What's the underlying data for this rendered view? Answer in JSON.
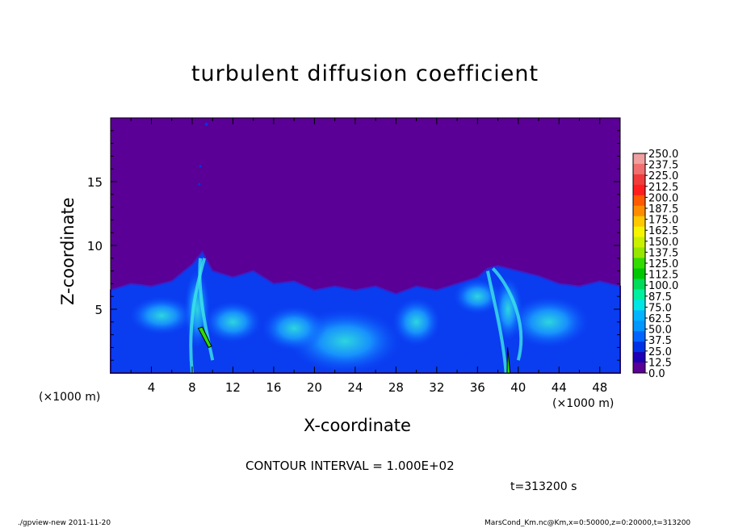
{
  "chart_data": {
    "type": "heatmap",
    "title": "turbulent diffusion coefficient",
    "xlabel": "X-coordinate",
    "ylabel": "Z-coordinate",
    "x_unit_label": "(×1000 m)",
    "xlim": [
      0,
      50
    ],
    "ylim": [
      0,
      20
    ],
    "x_ticks": [
      "4",
      "8",
      "12",
      "16",
      "20",
      "24",
      "28",
      "32",
      "36",
      "40",
      "44",
      "48"
    ],
    "y_ticks": [
      "5",
      "10",
      "15"
    ],
    "contour_interval_text": "CONTOUR INTERVAL = 1.000E+02",
    "time_text": "t=313200 s",
    "colorbar": {
      "labels": [
        "250.0",
        "237.5",
        "225.0",
        "212.5",
        "200.0",
        "187.5",
        "175.0",
        "162.5",
        "150.0",
        "137.5",
        "125.0",
        "112.5",
        "100.0",
        "87.5",
        "75.0",
        "62.5",
        "50.0",
        "37.5",
        "25.0",
        "12.5",
        "0.0"
      ],
      "colors": [
        "#f0a0a0",
        "#f07070",
        "#f03c3c",
        "#ff1e1e",
        "#ff5a00",
        "#ff8c00",
        "#ffc800",
        "#f5f500",
        "#c8f000",
        "#96e600",
        "#32dc00",
        "#00c800",
        "#00dc5a",
        "#00f0a0",
        "#00e6e6",
        "#00b4ff",
        "#0096ff",
        "#0064ff",
        "#0032e6",
        "#1e00b4",
        "#5a0096"
      ]
    },
    "description_values": {
      "background_value_range": [
        0,
        12.5
      ],
      "turbulent_layer_top_approx": 7
    },
    "field_outline": {
      "x": [
        0,
        2,
        4,
        6,
        8,
        9,
        10,
        12,
        14,
        16,
        18,
        20,
        22,
        24,
        26,
        28,
        30,
        32,
        34,
        36,
        37,
        38,
        40,
        42,
        44,
        46,
        48,
        50
      ],
      "z": [
        6.5,
        7,
        6.8,
        7.2,
        8.5,
        9.5,
        8,
        7.5,
        8,
        7,
        7.2,
        6.5,
        6.8,
        6.5,
        6.8,
        6.2,
        6.8,
        6.5,
        7,
        7.5,
        8.2,
        8.4,
        8,
        7.6,
        7,
        6.8,
        7.2,
        6.8
      ]
    }
  },
  "footer": {
    "left": "./gpview-new   2011-11-20",
    "right": "MarsCond_Km.nc@Km,x=0:50000,z=0:20000,t=313200"
  }
}
